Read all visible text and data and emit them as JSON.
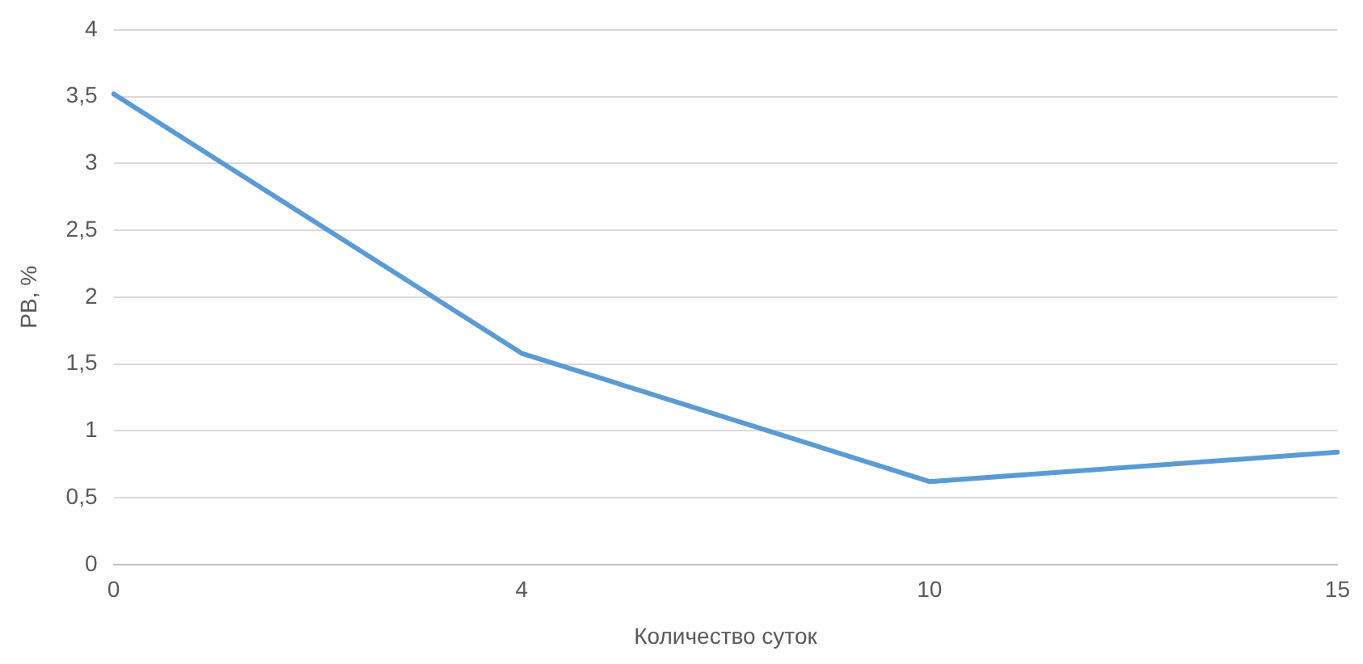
{
  "chart_data": {
    "type": "line",
    "xlabel": "Количество суток",
    "ylabel": "РВ, %",
    "categories": [
      "0",
      "4",
      "10",
      "15"
    ],
    "series": [
      {
        "color": "#5b9bd5",
        "values": [
          3.52,
          1.58,
          0.62,
          0.84
        ]
      }
    ],
    "ylim": [
      0,
      4
    ],
    "yticks": [
      0,
      {
        "value": 0.5,
        "label": "0,5"
      },
      1,
      {
        "value": 1.5,
        "label": "1,5"
      },
      2,
      {
        "value": 2.5,
        "label": "2,5"
      },
      3,
      {
        "value": 3.5,
        "label": "3,5"
      },
      4
    ],
    "grid": "y",
    "legend": false,
    "marker": "none",
    "line_style": "solid"
  }
}
